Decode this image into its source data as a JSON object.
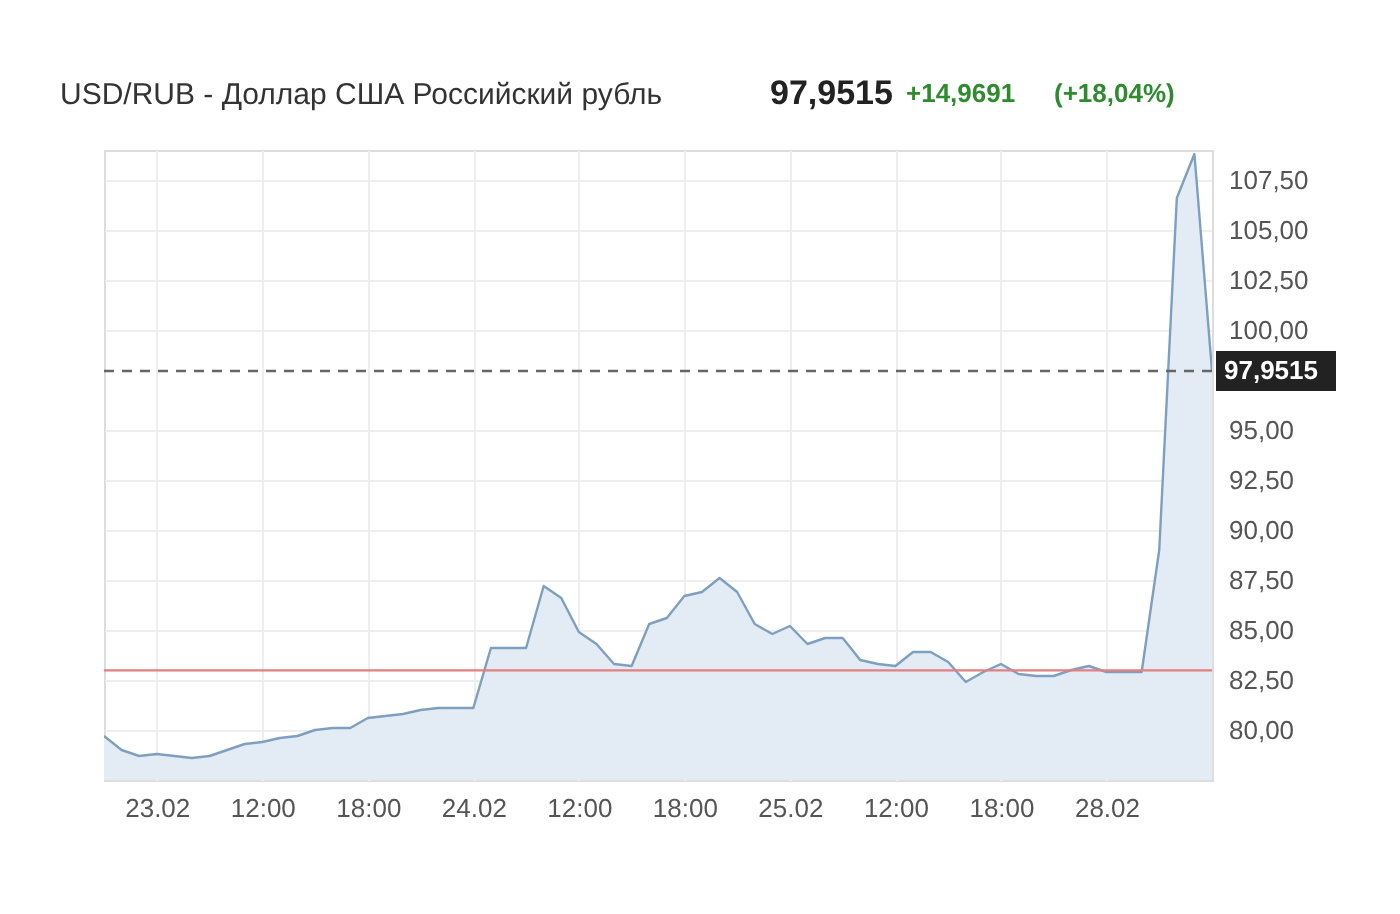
{
  "chart_data": {
    "type": "area",
    "title": "USD/RUB - Доллар США Российский рубль",
    "annotations": [
      "97,9515",
      "+14,9691",
      "(+18,04%)"
    ],
    "categories": [
      null,
      null,
      null,
      "23.02",
      null,
      null,
      null,
      null,
      null,
      "12:00",
      null,
      null,
      null,
      null,
      null,
      "18:00",
      null,
      null,
      null,
      null,
      null,
      "24.02",
      null,
      null,
      null,
      null,
      null,
      "12:00",
      null,
      null,
      null,
      null,
      null,
      "18:00",
      null,
      null,
      null,
      null,
      null,
      "25.02",
      null,
      null,
      null,
      null,
      null,
      "12:00",
      null,
      null,
      null,
      null,
      null,
      "18:00",
      null,
      null,
      null,
      null,
      null,
      "28.02",
      null,
      null,
      null,
      null,
      null,
      null
    ],
    "series": [
      {
        "color": "#7e9fbf",
        "values": [
          79.7,
          79.0,
          78.7,
          78.8,
          78.7,
          78.6,
          78.7,
          79.0,
          79.3,
          79.4,
          79.6,
          79.7,
          80.0,
          80.1,
          80.1,
          80.6,
          80.7,
          80.8,
          81.0,
          81.1,
          81.1,
          81.1,
          84.1,
          84.1,
          84.1,
          87.2,
          86.6,
          84.9,
          84.3,
          83.3,
          83.2,
          85.3,
          85.6,
          86.7,
          86.9,
          87.6,
          86.9,
          85.3,
          84.8,
          85.2,
          84.3,
          84.6,
          84.6,
          83.5,
          83.3,
          83.2,
          83.9,
          83.9,
          83.4,
          82.4,
          82.9,
          83.3,
          82.8,
          82.7,
          82.7,
          83.0,
          83.2,
          82.9,
          82.9,
          82.9,
          89.0,
          106.6,
          108.8,
          97.9515
        ]
      }
    ],
    "ylim": [
      77.5,
      109
    ],
    "yticks": [
      {
        "value": 80,
        "label": "80,00"
      },
      {
        "value": 82.5,
        "label": "82,50"
      },
      {
        "value": 85,
        "label": "85,00"
      },
      {
        "value": 87.5,
        "label": "87,50"
      },
      {
        "value": 90,
        "label": "90,00"
      },
      {
        "value": 92.5,
        "label": "92,50"
      },
      {
        "value": 95,
        "label": "95,00"
      },
      {
        "value": 100,
        "label": "100,00"
      },
      {
        "value": 102.5,
        "label": "102,50"
      },
      {
        "value": 105,
        "label": "105,00"
      },
      {
        "value": 107.5,
        "label": "107,50"
      }
    ],
    "ref_lines": [
      {
        "axis": "y",
        "value": 97.9515,
        "label": "97,9515",
        "color": "#666666",
        "line_style": "dashed"
      },
      {
        "axis": "y",
        "value": 82.9824,
        "color": "#e08080",
        "line_style": "solid"
      }
    ],
    "grid": true
  }
}
